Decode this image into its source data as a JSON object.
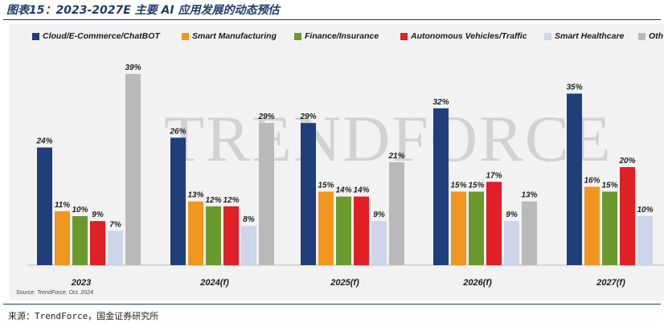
{
  "figure": {
    "title": "图表15：2023-2027E 主要 AI 应用发展的动态预估",
    "source_note": "来源：TrendForce，国金证券研究所"
  },
  "chart_data": {
    "type": "bar",
    "categories": [
      "2023",
      "2024(f)",
      "2025(f)",
      "2026(f)",
      "2027(f)"
    ],
    "series": [
      {
        "name": "Cloud/E-Commerce/ChatBOT",
        "color": "#1f3e7a",
        "values": [
          24,
          26,
          29,
          32,
          35
        ]
      },
      {
        "name": "Smart Manufacturing",
        "color": "#f0961e",
        "values": [
          11,
          13,
          15,
          15,
          16
        ]
      },
      {
        "name": "Finance/Insurance",
        "color": "#6a9a2e",
        "values": [
          10,
          12,
          14,
          15,
          15
        ]
      },
      {
        "name": "Autonomous Vehicles/Traffic",
        "color": "#e01f26",
        "values": [
          9,
          12,
          14,
          17,
          20
        ]
      },
      {
        "name": "Smart Healthcare",
        "color": "#ccd6e8",
        "values": [
          7,
          8,
          9,
          9,
          10
        ]
      },
      {
        "name": "Oth",
        "color": "#b9b9b9",
        "values": [
          39,
          29,
          21,
          13,
          null
        ]
      }
    ],
    "data_label_suffix": "%",
    "ylim": [
      0,
      39
    ],
    "source": "Source: TrendForce, Oct. 2024",
    "watermark": "TRENDFORCE",
    "legend_position": "top"
  }
}
